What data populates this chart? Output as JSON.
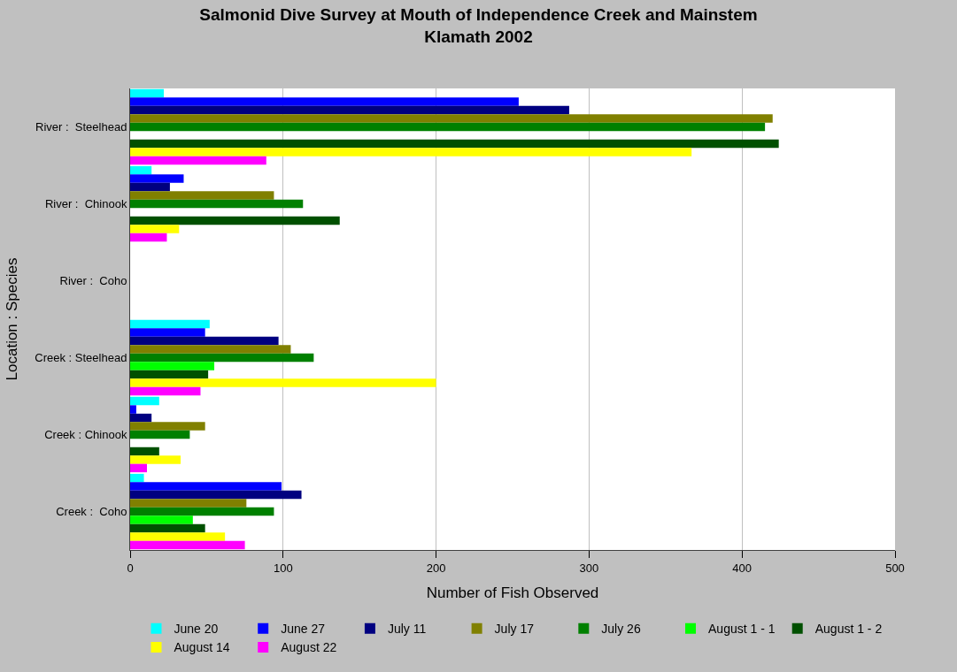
{
  "chart_data": {
    "type": "bar",
    "orientation": "horizontal",
    "title": "Salmonid Dive Survey at Mouth of Independence Creek and Mainstem\nKlamath 2002",
    "xlabel": "Number of Fish Observed",
    "ylabel": "Location : Species",
    "categories": [
      "River :  Steelhead",
      "River :  Chinook",
      "River :  Coho",
      "Creek : Steelhead",
      "Creek : Chinook",
      "Creek :  Coho"
    ],
    "series": [
      {
        "name": "June 20",
        "color": "#00ffff",
        "values": [
          22,
          14,
          null,
          52,
          19,
          9
        ]
      },
      {
        "name": "June 27",
        "color": "#0000ff",
        "values": [
          254,
          35,
          null,
          49,
          4,
          99
        ]
      },
      {
        "name": "July 11",
        "color": "#000080",
        "values": [
          287,
          26,
          null,
          97,
          14,
          112
        ]
      },
      {
        "name": "July 17",
        "color": "#808000",
        "values": [
          420,
          94,
          null,
          105,
          49,
          76
        ]
      },
      {
        "name": "July 26",
        "color": "#008000",
        "values": [
          415,
          113,
          null,
          120,
          39,
          94
        ]
      },
      {
        "name": "August 1 - 1",
        "color": "#00ff00",
        "values": [
          null,
          null,
          null,
          55,
          null,
          41
        ]
      },
      {
        "name": "August 1 - 2",
        "color": "#005000",
        "values": [
          424,
          137,
          null,
          51,
          19,
          49
        ]
      },
      {
        "name": "August 14",
        "color": "#ffff00",
        "values": [
          367,
          32,
          null,
          200,
          33,
          62
        ]
      },
      {
        "name": "August 22",
        "color": "#ff00ff",
        "values": [
          89,
          24,
          null,
          46,
          11,
          75
        ]
      }
    ],
    "xlim": [
      0,
      500
    ],
    "xticks": [
      0,
      100,
      200,
      300,
      400,
      500
    ],
    "grid": "x",
    "legend": "bottom"
  }
}
